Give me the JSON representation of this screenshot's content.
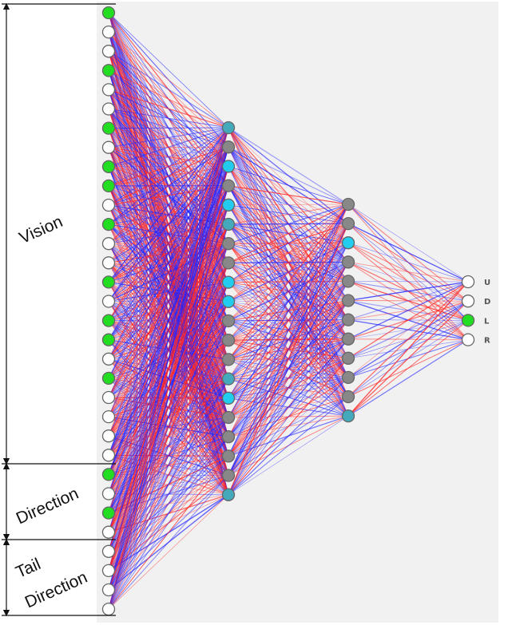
{
  "labels": {
    "vision": "Vision",
    "direction": "Direction",
    "tail_line1": "Tail",
    "tail_line2": "Direction"
  },
  "colors": {
    "panel": "#f1f1f1",
    "node_white": "#ffffff",
    "node_green": "#22dd22",
    "node_cyan": "#22ccee",
    "node_teal": "#44aabb",
    "node_gray": "#888888",
    "node_stroke": "#666666",
    "weight_positive": "#ff2222",
    "weight_negative": "#2222ff"
  },
  "network": {
    "input": {
      "count": 32,
      "states": [
        "g",
        "w",
        "w",
        "g",
        "w",
        "w",
        "g",
        "w",
        "g",
        "g",
        "w",
        "g",
        "w",
        "w",
        "g",
        "w",
        "g",
        "g",
        "w",
        "g",
        "w",
        "w",
        "w",
        "w",
        "g",
        "w",
        "g",
        "w",
        "w",
        "w",
        "w",
        "w"
      ]
    },
    "hidden1": {
      "count": 20,
      "states": [
        "t",
        "d",
        "c",
        "d",
        "c",
        "t",
        "d",
        "d",
        "c",
        "c",
        "d",
        "d",
        "d",
        "t",
        "c",
        "d",
        "d",
        "d",
        "d",
        "t"
      ]
    },
    "hidden2": {
      "count": 12,
      "states": [
        "d",
        "d",
        "c",
        "d",
        "d",
        "d",
        "d",
        "d",
        "d",
        "d",
        "d",
        "t"
      ]
    },
    "output": {
      "count": 4,
      "states": [
        "w",
        "w",
        "g",
        "w"
      ],
      "labels": [
        "U",
        "D",
        "L",
        "R"
      ]
    }
  },
  "groups": [
    {
      "name": "Vision",
      "first_input": 0,
      "last_input": 23
    },
    {
      "name": "Direction",
      "first_input": 24,
      "last_input": 27
    },
    {
      "name": "Tail Direction",
      "first_input": 28,
      "last_input": 31
    }
  ]
}
